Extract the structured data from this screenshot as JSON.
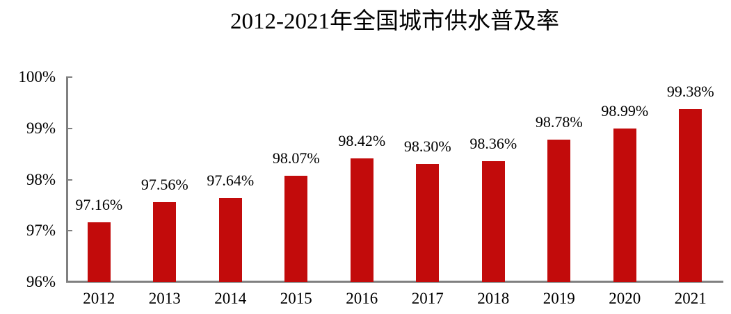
{
  "title": "2012-2021年全国城市供水普及率",
  "colors": {
    "bar": "#c20b0b",
    "axis": "#808080",
    "text": "#000000"
  },
  "chart_data": {
    "type": "bar",
    "title": "2012-2021年全国城市供水普及率",
    "categories": [
      "2012",
      "2013",
      "2014",
      "2015",
      "2016",
      "2017",
      "2018",
      "2019",
      "2020",
      "2021"
    ],
    "values": [
      97.16,
      97.56,
      97.64,
      98.07,
      98.42,
      98.3,
      98.36,
      98.78,
      98.99,
      99.38
    ],
    "data_labels": [
      "97.16%",
      "97.56%",
      "97.64%",
      "98.07%",
      "98.42%",
      "98.30%",
      "98.36%",
      "98.78%",
      "98.99%",
      "99.38%"
    ],
    "xlabel": "",
    "ylabel": "",
    "ylim": [
      96,
      100
    ],
    "ytick_values": [
      96,
      97,
      98,
      99,
      100
    ],
    "ytick_labels": [
      "96%",
      "97%",
      "98%",
      "99%",
      "100%"
    ],
    "grid": false,
    "legend_position": "none"
  }
}
